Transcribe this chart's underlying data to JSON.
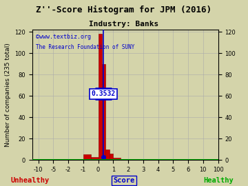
{
  "title": "Z''-Score Histogram for JPM (2016)",
  "subtitle": "Industry: Banks",
  "xlabel_left": "Unhealthy",
  "xlabel_center": "Score",
  "xlabel_right": "Healthy",
  "ylabel": "Number of companies (235 total)",
  "watermark1": "©www.textbiz.org",
  "watermark2": "The Research Foundation of SUNY",
  "annotation": "0.3532",
  "jpm_score": 0.3532,
  "ylim": [
    0,
    122
  ],
  "tick_vals": [
    -10,
    -5,
    -2,
    -1,
    0,
    1,
    2,
    3,
    4,
    5,
    6,
    10,
    100
  ],
  "xtick_labels": [
    "-10",
    "-5",
    "-2",
    "-1",
    "0",
    "1",
    "2",
    "3",
    "4",
    "5",
    "6",
    "10",
    "100"
  ],
  "yticks": [
    0,
    20,
    40,
    60,
    80,
    100,
    120
  ],
  "bar_edges": [
    -11,
    -6,
    -3,
    -2,
    -1,
    -0.5,
    0,
    0.25,
    0.5,
    0.75,
    1.0,
    1.5,
    2,
    3,
    4,
    5,
    6,
    11,
    101
  ],
  "bar_heights": [
    0,
    0,
    0,
    1,
    5,
    3,
    118,
    90,
    10,
    6,
    2,
    0,
    0,
    0,
    0,
    0,
    0,
    0
  ],
  "bar_color": "#cc0000",
  "bar_edge_color": "#880000",
  "bg_color": "#d4d4aa",
  "grid_color": "#aaaaaa",
  "title_color": "#000000",
  "subtitle_color": "#000000",
  "watermark1_color": "#0000cc",
  "watermark2_color": "#0000cc",
  "unhealthy_color": "#cc0000",
  "healthy_color": "#00aa00",
  "score_color": "#0000cc",
  "annotation_color": "#0000cc",
  "annotation_bg": "#ffffff",
  "vline_color": "#0000cc",
  "hline_color": "#0000cc",
  "dot_color": "#0000cc",
  "green_line_color": "#00aa00",
  "title_fontsize": 9,
  "subtitle_fontsize": 8,
  "label_fontsize": 6.5,
  "tick_fontsize": 6,
  "annotation_fontsize": 7,
  "watermark_fontsize1": 6,
  "watermark_fontsize2": 5.5
}
